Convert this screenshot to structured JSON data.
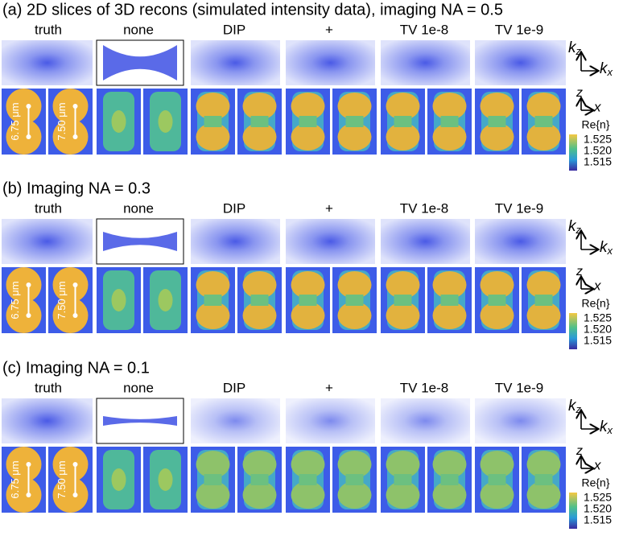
{
  "sections": [
    {
      "title": "(a) 2D slices of 3D recons (simulated intensity data), imaging NA = 0.5",
      "columns": [
        "truth",
        "none",
        "DIP",
        "+",
        "TV 1e-8",
        "TV 1e-9"
      ],
      "truth_labels": [
        "6.75 μm",
        "7.50 μm"
      ],
      "k_axes": [
        {
          "base": "k",
          "sub": "z"
        },
        {
          "base": "k",
          "sub": "x"
        }
      ],
      "real_axes": [
        "z",
        "x"
      ],
      "colorbar": {
        "label": "Re{n}",
        "ticks": [
          "1.525",
          "1.520",
          "1.515"
        ]
      }
    },
    {
      "title": "(b) Imaging NA = 0.3",
      "columns": [
        "truth",
        "none",
        "DIP",
        "+",
        "TV 1e-8",
        "TV 1e-9"
      ],
      "truth_labels": [
        "6.75 μm",
        "7.50 μm"
      ],
      "k_axes": [
        {
          "base": "k",
          "sub": "z"
        },
        {
          "base": "k",
          "sub": "x"
        }
      ],
      "real_axes": [
        "z",
        "x"
      ],
      "colorbar": {
        "label": "Re{n}",
        "ticks": [
          "1.525",
          "1.520",
          "1.515"
        ]
      }
    },
    {
      "title": "(c) Imaging NA = 0.1",
      "columns": [
        "truth",
        "none",
        "DIP",
        "+",
        "TV 1e-8",
        "TV 1e-9"
      ],
      "truth_labels": [
        "6.75 μm",
        "7.50 μm"
      ],
      "k_axes": [
        {
          "base": "k",
          "sub": "z"
        },
        {
          "base": "k",
          "sub": "x"
        }
      ],
      "real_axes": [
        "z",
        "x"
      ],
      "colorbar": {
        "label": "Re{n}",
        "ticks": [
          "1.525",
          "1.520",
          "1.515"
        ]
      }
    }
  ]
}
